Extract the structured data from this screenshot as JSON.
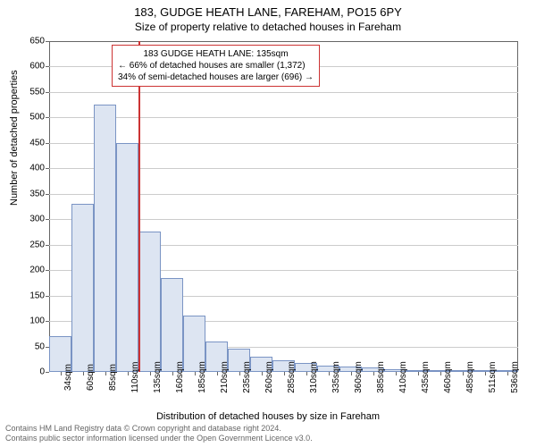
{
  "title_line1": "183, GUDGE HEATH LANE, FAREHAM, PO15 6PY",
  "title_line2": "Size of property relative to detached houses in Fareham",
  "ylabel": "Number of detached properties",
  "xlabel": "Distribution of detached houses by size in Fareham",
  "annotation": {
    "line1": "183 GUDGE HEATH LANE: 135sqm",
    "line2": "← 66% of detached houses are smaller (1,372)",
    "line3": "34% of semi-detached houses are larger (696) →",
    "border_color": "#cc3333"
  },
  "chart": {
    "type": "histogram",
    "ylim": [
      0,
      650
    ],
    "ytick_step": 50,
    "bar_fill": "#dde5f2",
    "bar_border": "#7a94c4",
    "grid_color": "#cccccc",
    "marker_x_index": 4,
    "marker_color": "#cc3333",
    "categories": [
      "34sqm",
      "60sqm",
      "85sqm",
      "110sqm",
      "135sqm",
      "160sqm",
      "185sqm",
      "210sqm",
      "235sqm",
      "260sqm",
      "285sqm",
      "310sqm",
      "335sqm",
      "360sqm",
      "385sqm",
      "410sqm",
      "435sqm",
      "460sqm",
      "485sqm",
      "511sqm",
      "536sqm"
    ],
    "values": [
      70,
      330,
      525,
      450,
      275,
      185,
      110,
      60,
      45,
      30,
      22,
      18,
      12,
      10,
      8,
      6,
      4,
      3,
      2,
      2,
      1
    ]
  },
  "footer": {
    "line1": "Contains HM Land Registry data © Crown copyright and database right 2024.",
    "line2": "Contains public sector information licensed under the Open Government Licence v3.0."
  }
}
